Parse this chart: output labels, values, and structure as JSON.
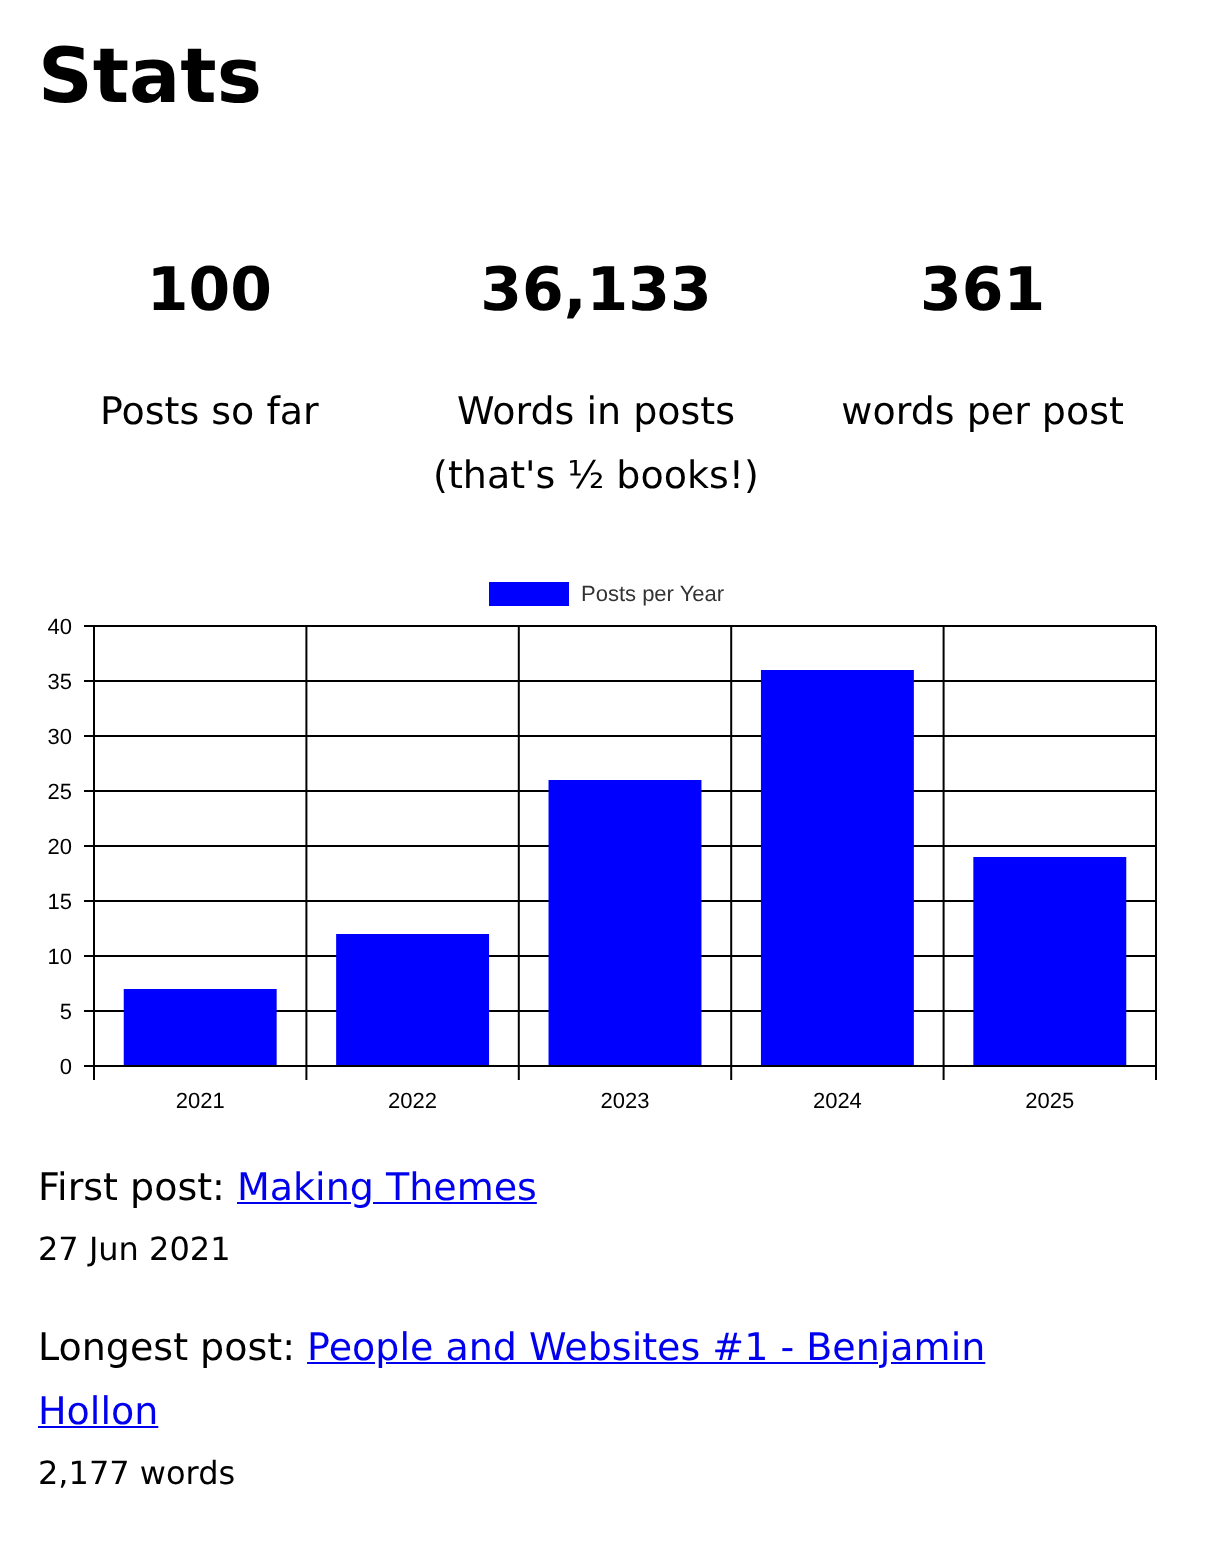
{
  "chart_data": [
    {
      "type": "other",
      "title": "Stats",
      "annotations": [
        "100",
        "Posts so far",
        "36,133",
        "Words in posts (that's ½ books!)",
        "361",
        "words per post"
      ]
    },
    {
      "type": "bar",
      "categories": [
        "2021",
        "2022",
        "2023",
        "2024",
        "2025"
      ],
      "series": [
        {
          "name": "Posts per Year",
          "color": "#0000ff",
          "values": [
            7,
            12,
            26,
            36,
            19
          ]
        }
      ],
      "ylim": [
        0,
        40
      ],
      "yticks": [
        0,
        5,
        10,
        15,
        20,
        25,
        30,
        35,
        40
      ],
      "grid": true,
      "legend": "top"
    },
    {
      "type": "other",
      "annotations": [
        "First post:",
        "Making Themes",
        "27 Jun 2021",
        "Longest post:",
        "People and Websites #1 - Benjamin Hollon",
        "2,177 words"
      ]
    }
  ]
}
